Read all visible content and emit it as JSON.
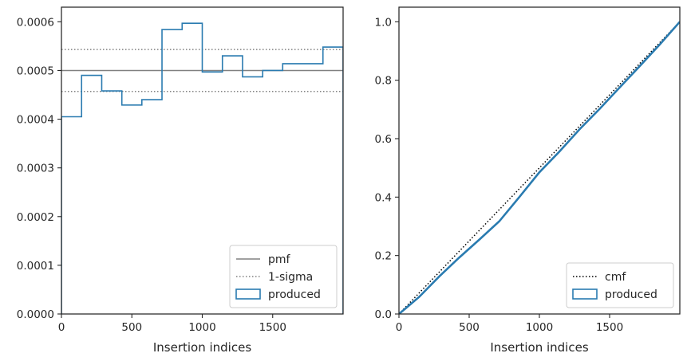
{
  "chart_data": [
    {
      "type": "step",
      "xlabel": "Insertion indices",
      "ylabel": "",
      "xlim": [
        0,
        2000
      ],
      "ylim": [
        0,
        0.00063
      ],
      "xticks": [
        0,
        500,
        1000,
        1500
      ],
      "xtick_labels": [
        "0",
        "500",
        "1000",
        "1500"
      ],
      "yticks": [
        0,
        0.0001,
        0.0002,
        0.0003,
        0.0004,
        0.0005,
        0.0006
      ],
      "ytick_labels": [
        "0.0000",
        "0.0001",
        "0.0002",
        "0.0003",
        "0.0004",
        "0.0005",
        "0.0006"
      ],
      "reference_lines": [
        {
          "name": "pmf",
          "y": 0.0005,
          "style": "solid",
          "color": "#808080"
        },
        {
          "name": "1-sigma",
          "y": 0.000543,
          "style": "dotted",
          "color": "#808080"
        },
        {
          "name": "1-sigma",
          "y": 0.000457,
          "style": "dotted",
          "color": "#808080"
        }
      ],
      "series": [
        {
          "name": "produced",
          "color": "#2a7bb0",
          "bin_edges": [
            0,
            143,
            286,
            429,
            571,
            714,
            857,
            1000,
            1143,
            1286,
            1429,
            1571,
            1714,
            1857,
            2000
          ],
          "values": [
            0.000405,
            0.00049,
            0.000458,
            0.000429,
            0.00044,
            0.000584,
            0.000597,
            0.000497,
            0.00053,
            0.000487,
            0.0005,
            0.000514,
            0.000514,
            0.000548
          ]
        }
      ],
      "legend": {
        "position": "lower-right",
        "entries": [
          "pmf",
          "1-sigma",
          "produced"
        ]
      },
      "grid": false
    },
    {
      "type": "line",
      "xlabel": "Insertion indices",
      "ylabel": "",
      "xlim": [
        0,
        2000
      ],
      "ylim": [
        0,
        1.05
      ],
      "xticks": [
        0,
        500,
        1000,
        1500
      ],
      "xtick_labels": [
        "0",
        "500",
        "1000",
        "1500"
      ],
      "yticks": [
        0,
        0.2,
        0.4,
        0.6,
        0.8,
        1.0
      ],
      "ytick_labels": [
        "0.0",
        "0.2",
        "0.4",
        "0.6",
        "0.8",
        "1.0"
      ],
      "series": [
        {
          "name": "cmf",
          "style": "dotted",
          "color": "#000000",
          "x": [
            0,
            2000
          ],
          "y": [
            0,
            1.0
          ]
        },
        {
          "name": "produced",
          "color": "#2a7bb0",
          "x": [
            0,
            143,
            286,
            429,
            571,
            714,
            857,
            1000,
            1143,
            1286,
            1429,
            1571,
            1714,
            1857,
            2000
          ],
          "y": [
            0,
            0.058,
            0.128,
            0.193,
            0.254,
            0.317,
            0.4,
            0.485,
            0.556,
            0.632,
            0.702,
            0.775,
            0.848,
            0.922,
            1.0
          ]
        }
      ],
      "legend": {
        "position": "lower-right",
        "entries": [
          "cmf",
          "produced"
        ]
      },
      "grid": false
    }
  ]
}
